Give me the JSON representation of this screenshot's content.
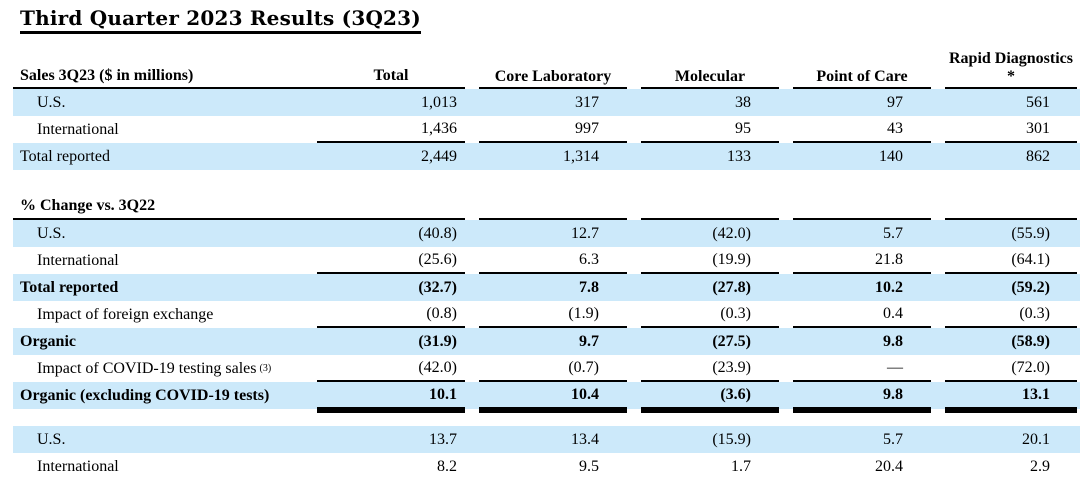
{
  "title": "Third Quarter 2023 Results (3Q23)",
  "colors": {
    "row_highlight": "#cce9fa",
    "rule": "#000000",
    "text": "#000000",
    "background": "#ffffff"
  },
  "table": {
    "header": {
      "label": "Sales 3Q23 ($ in millions)",
      "columns": [
        "Total",
        "Core Laboratory",
        "Molecular",
        "Point of Care",
        "Rapid Diagnostics *"
      ]
    },
    "sections": [
      {
        "name": "sales-3q23",
        "header": null,
        "rows": [
          {
            "label": "U.S.",
            "values": [
              "1,013",
              "317",
              "38",
              "97",
              "561"
            ],
            "highlight": true,
            "indent": true
          },
          {
            "label": "International",
            "values": [
              "1,436",
              "997",
              "95",
              "43",
              "301"
            ],
            "indent": true,
            "rule_below": true
          },
          {
            "label": "Total reported",
            "values": [
              "2,449",
              "1,314",
              "133",
              "140",
              "862"
            ],
            "highlight": true
          }
        ]
      },
      {
        "name": "pct-change-vs-3q22",
        "header": "% Change vs. 3Q22",
        "rows": [
          {
            "label": "U.S.",
            "values": [
              "(40.8)",
              "12.7",
              "(42.0)",
              "5.7",
              "(55.9)"
            ],
            "highlight": true,
            "indent": true
          },
          {
            "label": "International",
            "values": [
              "(25.6)",
              "6.3",
              "(19.9)",
              "21.8",
              "(64.1)"
            ],
            "indent": true,
            "rule_below": true
          },
          {
            "label": "Total reported",
            "values": [
              "(32.7)",
              "7.8",
              "(27.8)",
              "10.2",
              "(59.2)"
            ],
            "highlight": true,
            "bold": true
          },
          {
            "label": "Impact of foreign exchange",
            "values": [
              "(0.8)",
              "(1.9)",
              "(0.3)",
              "0.4",
              "(0.3)"
            ],
            "indent": true,
            "rule_below": true
          },
          {
            "label": "Organic",
            "values": [
              "(31.9)",
              "9.7",
              "(27.5)",
              "9.8",
              "(58.9)"
            ],
            "highlight": true,
            "bold": true
          },
          {
            "label": "Impact of COVID-19 testing sales",
            "label_sup": "(3)",
            "values": [
              "(42.0)",
              "(0.7)",
              "(23.9)",
              "—",
              "(72.0)"
            ],
            "indent": true,
            "rule_below": true
          },
          {
            "label": "Organic (excluding COVID-19 tests)",
            "values": [
              "10.1",
              "10.4",
              "(3.6)",
              "9.8",
              "13.1"
            ],
            "highlight": true,
            "bold": true,
            "double_rule_below": true
          }
        ]
      },
      {
        "name": "bottom-partial",
        "header": null,
        "rows": [
          {
            "label": "U.S.",
            "values": [
              "13.7",
              "13.4",
              "(15.9)",
              "5.7",
              "20.1"
            ],
            "highlight": true,
            "indent": true
          },
          {
            "label": "International",
            "values": [
              "8.2",
              "9.5",
              "1.7",
              "20.4",
              "2.9"
            ],
            "indent": true
          }
        ]
      }
    ]
  }
}
